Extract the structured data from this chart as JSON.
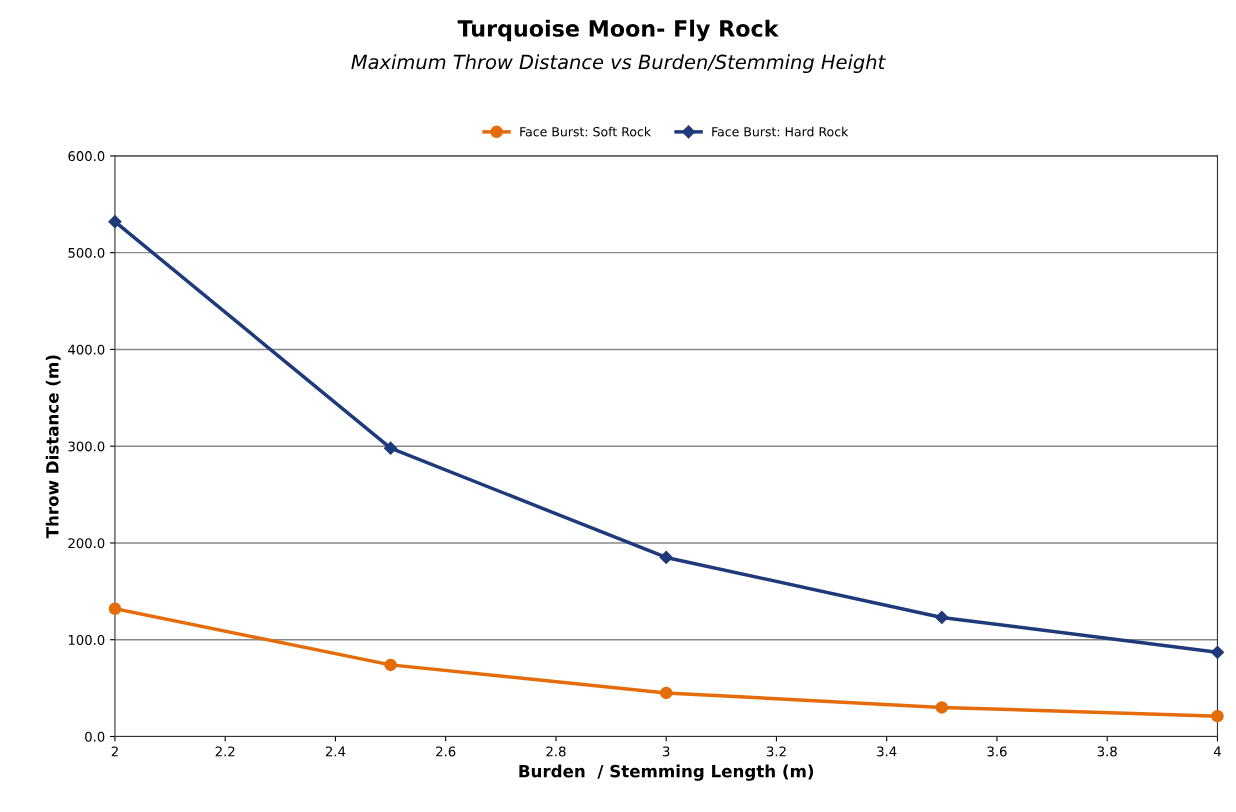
{
  "chart_data": {
    "type": "line",
    "title": "Turquoise Moon- Fly Rock",
    "subtitle": "Maximum Throw Distance vs Burden/Stemming Height",
    "xlabel": "Burden  / Stemming Length (m)",
    "ylabel": "Throw Distance (m)",
    "x": [
      2,
      2.5,
      3,
      3.5,
      4
    ],
    "series": [
      {
        "name": "Face Burst: Soft Rock",
        "color": "#e46c0a",
        "marker": "circle",
        "values": [
          132,
          74,
          45,
          30,
          21
        ]
      },
      {
        "name": "Face Burst: Hard Rock",
        "color": "#1f3a7a",
        "marker": "diamond",
        "values": [
          532,
          298,
          185,
          123,
          87
        ]
      }
    ],
    "xlim": [
      2,
      4
    ],
    "xticks": [
      2,
      2.2,
      2.4,
      2.6,
      2.8,
      3,
      3.2,
      3.4,
      3.6,
      3.8,
      4
    ],
    "ylim": [
      0,
      600
    ],
    "yticks": [
      {
        "value": 0,
        "label": "0.0"
      },
      {
        "value": 100,
        "label": "100.0"
      },
      {
        "value": 200,
        "label": "200.0"
      },
      {
        "value": 300,
        "label": "300.0"
      },
      {
        "value": 400,
        "label": "400.0"
      },
      {
        "value": 500,
        "label": "500.0"
      },
      {
        "value": 600,
        "label": "600.0"
      }
    ],
    "grid": "y",
    "legend": "top",
    "line_style": "solid"
  }
}
